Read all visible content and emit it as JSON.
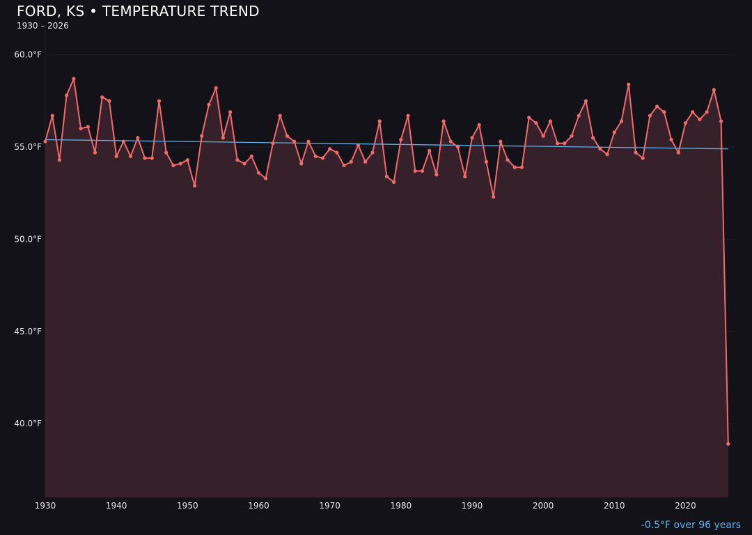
{
  "header": {
    "title": "FORD, KS • TEMPERATURE TREND",
    "subtitle": "1930 – 2026"
  },
  "footer": {
    "trend_label": "-0.5°F over 96 years"
  },
  "colors": {
    "background": "#131218",
    "line": "#f26b6b",
    "fill": "#36202a",
    "trend": "#5ab4ea"
  },
  "chart_data": {
    "type": "line",
    "title": "FORD, KS • TEMPERATURE TREND",
    "subtitle": "1930 – 2026",
    "xlim": [
      1930,
      2027
    ],
    "ylim": [
      36,
      61.5
    ],
    "x_ticks": [
      1930,
      1940,
      1950,
      1960,
      1970,
      1980,
      1990,
      2000,
      2010,
      2020
    ],
    "x_tick_labels": [
      "1930",
      "1940",
      "1950",
      "1960",
      "1970",
      "1980",
      "1990",
      "2000",
      "2010",
      "2020"
    ],
    "y_ticks": [
      40,
      45,
      50,
      55,
      60
    ],
    "y_tick_labels": [
      "40.0°F",
      "45.0°F",
      "50.0°F",
      "55.0°F",
      "60.0°F"
    ],
    "grid": true,
    "x_start": 1930,
    "values": [
      55.3,
      56.7,
      54.3,
      57.8,
      58.7,
      56.0,
      56.1,
      54.7,
      57.7,
      57.5,
      54.5,
      55.3,
      54.5,
      55.5,
      54.4,
      54.4,
      57.5,
      54.7,
      54.0,
      54.1,
      54.3,
      52.9,
      55.6,
      57.3,
      58.2,
      55.5,
      56.9,
      54.3,
      54.1,
      54.5,
      53.6,
      53.3,
      55.2,
      56.7,
      55.6,
      55.3,
      54.1,
      55.3,
      54.5,
      54.4,
      54.9,
      54.7,
      54.0,
      54.2,
      55.1,
      54.2,
      54.7,
      56.4,
      53.4,
      53.1,
      55.4,
      56.7,
      53.7,
      53.7,
      54.8,
      53.5,
      56.4,
      55.3,
      55.0,
      53.4,
      55.5,
      56.2,
      54.2,
      52.3,
      55.3,
      54.3,
      53.9,
      53.9,
      56.6,
      56.3,
      55.6,
      56.4,
      55.2,
      55.2,
      55.6,
      56.7,
      57.5,
      55.5,
      54.9,
      54.6,
      55.8,
      56.4,
      58.4,
      54.7,
      54.4,
      56.7,
      57.2,
      56.9,
      55.4,
      54.7,
      56.3,
      56.9,
      56.5,
      56.9,
      58.1,
      56.4,
      38.9
    ],
    "trend_line": {
      "x": [
        1930,
        2026
      ],
      "y": [
        55.4,
        54.9
      ]
    }
  }
}
